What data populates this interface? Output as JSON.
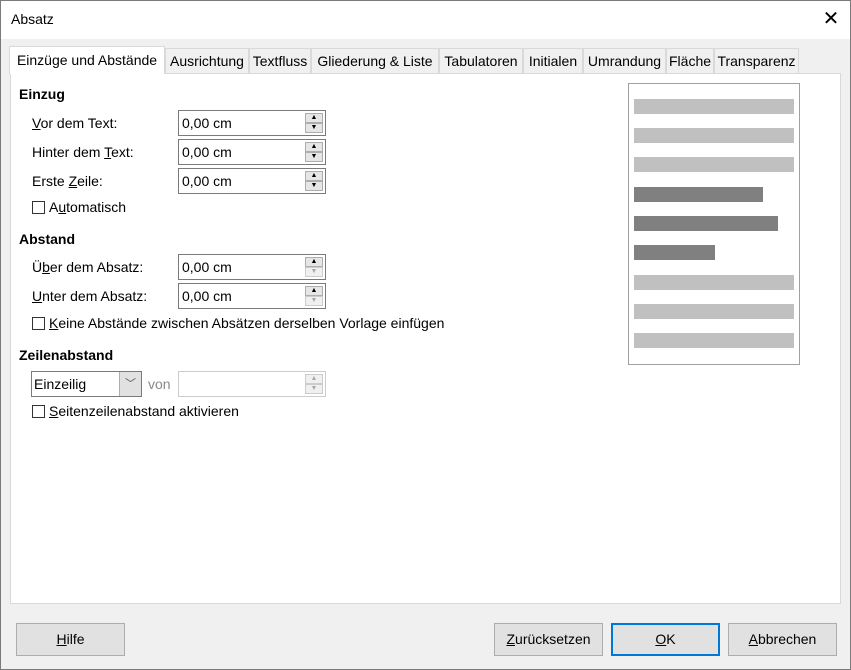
{
  "window": {
    "title": "Absatz",
    "close_icon": "close-icon"
  },
  "tabs": [
    {
      "label": "Einzüge und Abstände",
      "active": true
    },
    {
      "label": "Ausrichtung"
    },
    {
      "label": "Textfluss"
    },
    {
      "label": "Gliederung & Liste"
    },
    {
      "label": "Tabulatoren"
    },
    {
      "label": "Initialen"
    },
    {
      "label": "Umrandung"
    },
    {
      "label": "Fläche"
    },
    {
      "label": "Transparenz"
    }
  ],
  "indent": {
    "heading": "Einzug",
    "before": {
      "label": "Vor dem Text:",
      "mnemonic": "V",
      "value": "0,00 cm"
    },
    "after": {
      "label": "Hinter dem Text:",
      "mnemonic": "T",
      "value": "0,00 cm"
    },
    "first": {
      "label": "Erste Zeile:",
      "mnemonic": "Z",
      "value": "0,00 cm"
    },
    "auto": {
      "label": "Automatisch",
      "mnemonic": "u",
      "checked": false
    }
  },
  "spacing": {
    "heading": "Abstand",
    "above": {
      "label": "Über dem Absatz:",
      "mnemonic": "b",
      "value": "0,00 cm"
    },
    "below": {
      "label": "Unter dem Absatz:",
      "mnemonic": "U",
      "value": "0,00 cm"
    },
    "nospace": {
      "label": "Keine Abstände zwischen Absätzen derselben Vorlage einfügen",
      "mnemonic": "K",
      "checked": false
    }
  },
  "linespacing": {
    "heading": "Zeilenabstand",
    "select_value": "Einzeilig",
    "of_label": "von",
    "of_value": "",
    "register": {
      "label": "Seitenzeilenabstand aktivieren",
      "mnemonic": "S",
      "checked": false
    }
  },
  "preview": {
    "light_color": "#c0c0c0",
    "dark_color": "#808080"
  },
  "buttons": {
    "help": {
      "label": "Hilfe",
      "mnemonic": "H"
    },
    "reset": {
      "label": "Zurücksetzen",
      "mnemonic": "Z"
    },
    "ok": {
      "label": "OK",
      "mnemonic": "O"
    },
    "cancel": {
      "label": "Abbrechen",
      "mnemonic": "A"
    }
  }
}
